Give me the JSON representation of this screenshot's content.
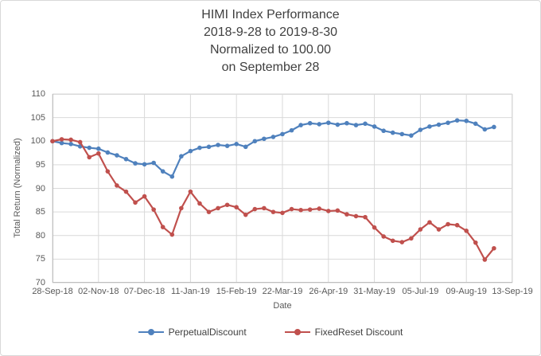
{
  "title_lines": [
    "HIMI Index Performance",
    "2018-9-28 to 2019-8-30",
    "Normalized to 100.00",
    "on September 28"
  ],
  "chart_data": {
    "type": "line",
    "title": "HIMI Index Performance 2018-9-28 to 2019-8-30 Normalized to 100.00 on September 28",
    "xlabel": "Date",
    "ylabel": "Total Return (Normalized)",
    "ylim": [
      70,
      110
    ],
    "yticks": [
      70,
      75,
      80,
      85,
      90,
      95,
      100,
      105,
      110
    ],
    "x_range_days": [
      0,
      350
    ],
    "xtick_days": [
      0,
      35,
      70,
      105,
      140,
      175,
      210,
      245,
      280,
      315,
      350
    ],
    "xtick_labels": [
      "28-Sep-18",
      "02-Nov-18",
      "07-Dec-18",
      "11-Jan-19",
      "15-Feb-19",
      "22-Mar-19",
      "26-Apr-19",
      "31-May-19",
      "05-Jul-19",
      "09-Aug-19",
      "13-Sep-19"
    ],
    "grid": true,
    "legend_position": "bottom",
    "x_dates": [
      "2018-09-28",
      "2018-10-05",
      "2018-10-12",
      "2018-10-19",
      "2018-10-26",
      "2018-11-02",
      "2018-11-09",
      "2018-11-16",
      "2018-11-23",
      "2018-11-30",
      "2018-12-07",
      "2018-12-14",
      "2018-12-21",
      "2018-12-28",
      "2019-01-04",
      "2019-01-11",
      "2019-01-18",
      "2019-01-25",
      "2019-02-01",
      "2019-02-08",
      "2019-02-15",
      "2019-02-22",
      "2019-03-01",
      "2019-03-08",
      "2019-03-15",
      "2019-03-22",
      "2019-03-29",
      "2019-04-05",
      "2019-04-12",
      "2019-04-19",
      "2019-04-26",
      "2019-05-03",
      "2019-05-10",
      "2019-05-17",
      "2019-05-24",
      "2019-05-31",
      "2019-06-07",
      "2019-06-14",
      "2019-06-21",
      "2019-06-28",
      "2019-07-05",
      "2019-07-12",
      "2019-07-19",
      "2019-07-26",
      "2019-08-02",
      "2019-08-09",
      "2019-08-16",
      "2019-08-23",
      "2019-08-30"
    ],
    "x_days": [
      0,
      7,
      14,
      21,
      28,
      35,
      42,
      49,
      56,
      63,
      70,
      77,
      84,
      91,
      98,
      105,
      112,
      119,
      126,
      133,
      140,
      147,
      154,
      161,
      168,
      175,
      182,
      189,
      196,
      203,
      210,
      217,
      224,
      231,
      238,
      245,
      252,
      259,
      266,
      273,
      280,
      287,
      294,
      301,
      308,
      315,
      322,
      329,
      336
    ],
    "series": [
      {
        "name": "PerpetualDiscount",
        "color": "#4F81BD",
        "values": [
          100.0,
          99.6,
          99.4,
          98.9,
          98.6,
          98.4,
          97.6,
          97.0,
          96.2,
          95.3,
          95.1,
          95.4,
          93.6,
          92.5,
          96.8,
          97.9,
          98.6,
          98.8,
          99.2,
          99.0,
          99.4,
          98.8,
          100.0,
          100.5,
          100.9,
          101.5,
          102.3,
          103.4,
          103.8,
          103.6,
          103.9,
          103.5,
          103.8,
          103.4,
          103.7,
          103.1,
          102.2,
          101.8,
          101.5,
          101.2,
          102.4,
          103.1,
          103.5,
          103.9,
          104.4,
          104.3,
          103.7,
          102.5,
          103.0
        ]
      },
      {
        "name": "FixedReset Discount",
        "color": "#C0504D",
        "values": [
          100.0,
          100.4,
          100.3,
          99.8,
          96.6,
          97.4,
          93.6,
          90.6,
          89.3,
          87.0,
          88.3,
          85.5,
          81.8,
          80.2,
          85.8,
          89.3,
          86.8,
          85.0,
          85.8,
          86.5,
          86.0,
          84.4,
          85.6,
          85.8,
          85.0,
          84.8,
          85.6,
          85.4,
          85.5,
          85.7,
          85.2,
          85.3,
          84.5,
          84.1,
          83.9,
          81.7,
          79.8,
          78.9,
          78.6,
          79.4,
          81.3,
          82.8,
          81.3,
          82.4,
          82.2,
          81.0,
          78.5,
          74.9,
          77.3
        ]
      }
    ]
  },
  "colors": {
    "grid": "#d9d9d9",
    "plot_border": "#d9d9d9",
    "axis_line": "#bfbfbf",
    "title_text": "#404040",
    "tick_text": "#595959"
  },
  "layout_hints": {
    "marker_style": "filled-circle",
    "line_width": 2.2
  }
}
